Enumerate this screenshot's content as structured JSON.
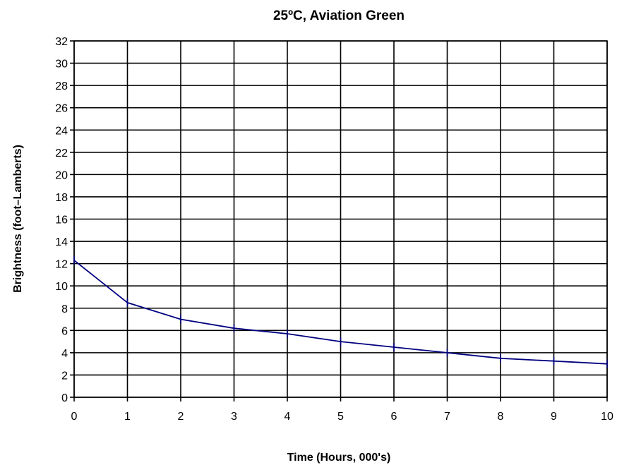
{
  "chart_data": {
    "type": "line",
    "title": "25ºC,  Aviation Green",
    "xlabel": "Time (Hours, 000's)",
    "ylabel": "Brightness (foot–Lamberts)",
    "xlim": [
      0,
      10
    ],
    "ylim": [
      0,
      32
    ],
    "x_ticks": [
      "0",
      "1",
      "2",
      "3",
      "4",
      "5",
      "6",
      "7",
      "8",
      "9",
      "10"
    ],
    "y_ticks": [
      "0",
      "2",
      "4",
      "6",
      "8",
      "10",
      "12",
      "14",
      "16",
      "18",
      "20",
      "22",
      "24",
      "26",
      "28",
      "30",
      "32"
    ],
    "grid": true,
    "legend": "none",
    "series": [
      {
        "color": "#000080",
        "x": [
          0,
          1,
          2,
          3,
          4,
          5,
          6,
          7,
          8,
          9,
          10
        ],
        "y": [
          12.3,
          8.5,
          7.0,
          6.2,
          5.7,
          5.0,
          4.5,
          4.0,
          3.5,
          3.25,
          3.0
        ]
      }
    ]
  }
}
